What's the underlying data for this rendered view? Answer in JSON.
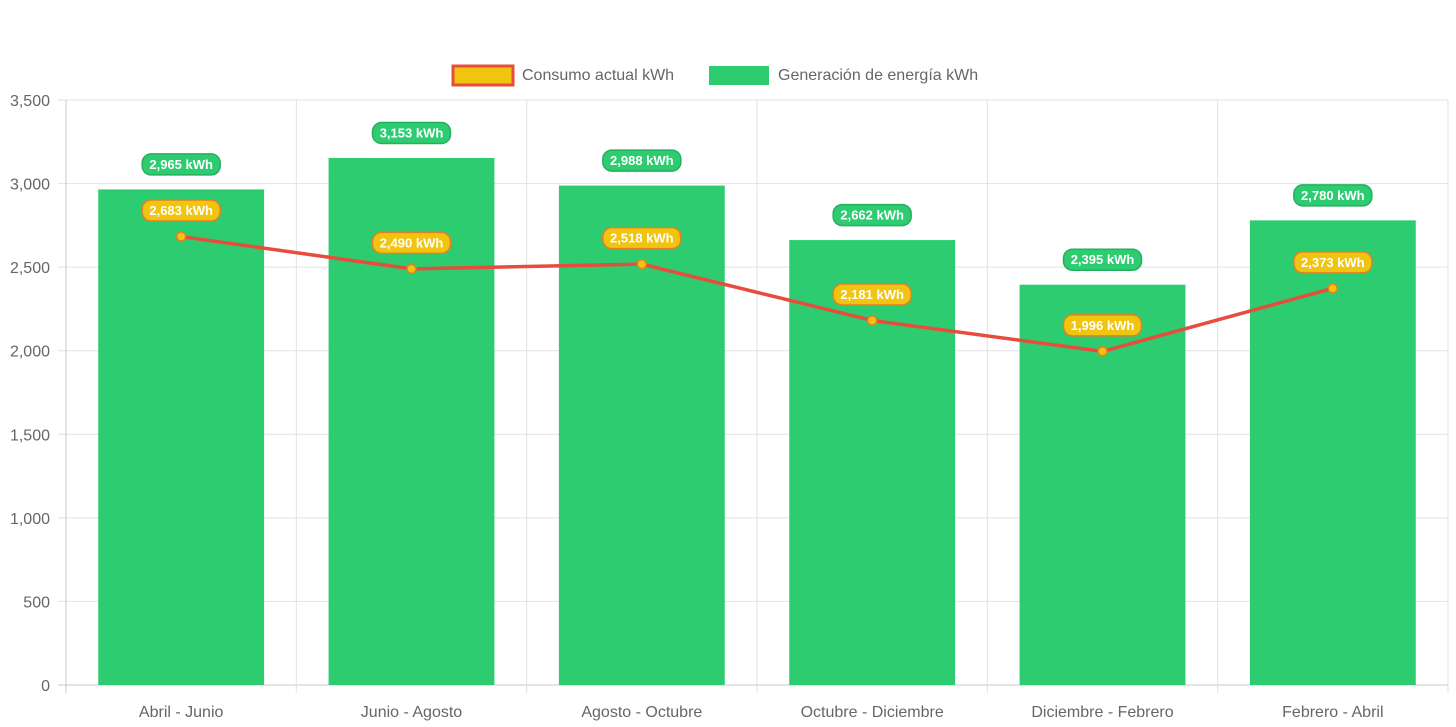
{
  "chart_data": {
    "type": "bar",
    "categories": [
      "Abril - Junio",
      "Junio - Agosto",
      "Agosto - Octubre",
      "Octubre - Diciembre",
      "Diciembre - Febrero",
      "Febrero - Abril"
    ],
    "series": [
      {
        "name": "Consumo actual kWh",
        "type": "line",
        "values": [
          2683,
          2490,
          2518,
          2181,
          1996,
          2373
        ],
        "labels": [
          "2,683 kWh",
          "2,490 kWh",
          "2,518 kWh",
          "2,181 kWh",
          "1,996 kWh",
          "2,373 kWh"
        ],
        "color": "#e74c3c",
        "fill": "#f1c40f"
      },
      {
        "name": "Generación de energía kWh",
        "type": "bar",
        "values": [
          2965,
          3153,
          2988,
          2662,
          2395,
          2780
        ],
        "labels": [
          "2,965 kWh",
          "3,153 kWh",
          "2,988 kWh",
          "2,662 kWh",
          "2,395 kWh",
          "2,780 kWh"
        ],
        "color": "#2ecc71"
      }
    ],
    "y_ticks": [
      "0",
      "500",
      "1,000",
      "1,500",
      "2,000",
      "2,500",
      "3,000",
      "3,500"
    ],
    "ylim": [
      0,
      3500
    ],
    "grid": true,
    "legend_position": "top"
  }
}
